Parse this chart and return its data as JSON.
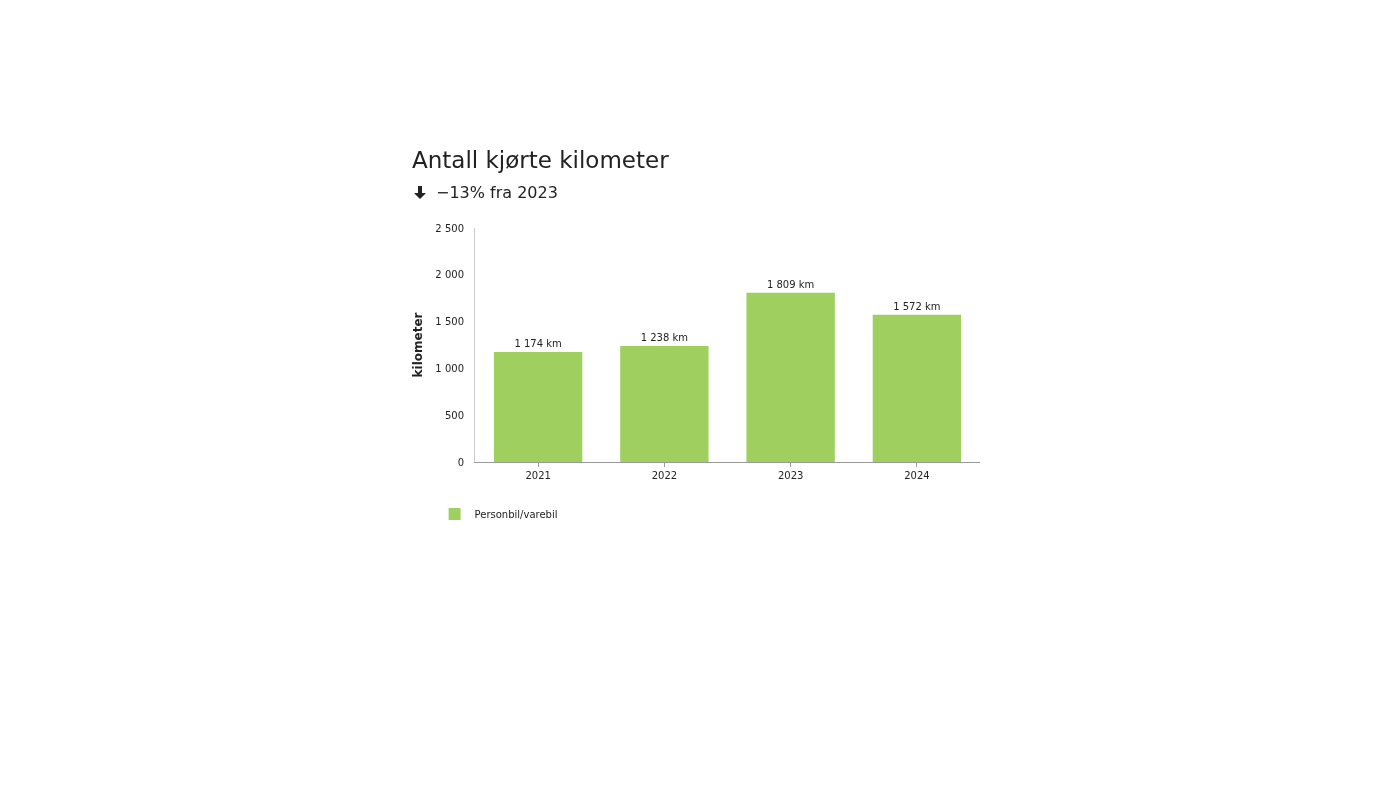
{
  "chart_data": {
    "type": "bar",
    "title": "Antall kjørte kilometer",
    "subtitle": "−13% fra 2023",
    "ylabel": "kilometer",
    "categories": [
      "2021",
      "2022",
      "2023",
      "2024"
    ],
    "series": [
      {
        "name": "Personbil/varebil",
        "color": "#9fd05f",
        "values": [
          1174,
          1238,
          1809,
          1572
        ],
        "value_labels": [
          "1 174 km",
          "1 238 km",
          "1 809 km",
          "1 572 km"
        ]
      }
    ],
    "ylim": [
      0,
      2500
    ],
    "yticks": [
      0,
      500,
      {
        "value": 1000,
        "label": "1 000"
      },
      {
        "value": 1500,
        "label": "1 500"
      },
      {
        "value": 2000,
        "label": "2 000"
      },
      {
        "value": 2500,
        "label": "2 500"
      }
    ],
    "grid": false,
    "legend": "bottom left"
  }
}
